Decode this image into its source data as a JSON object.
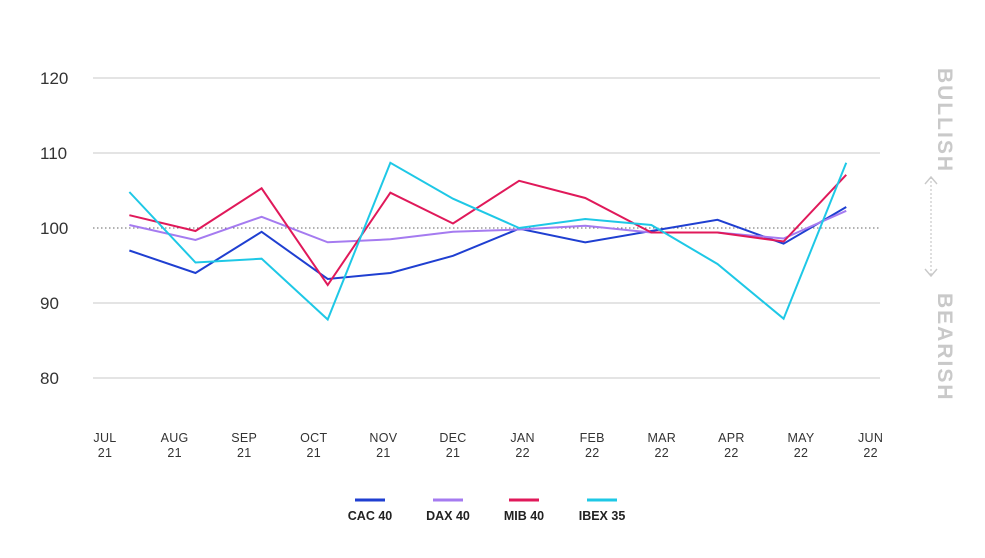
{
  "chart_data": {
    "type": "line",
    "categories": [
      [
        "JUL",
        "21"
      ],
      [
        "AUG",
        "21"
      ],
      [
        "SEP",
        "21"
      ],
      [
        "OCT",
        "21"
      ],
      [
        "NOV",
        "21"
      ],
      [
        "DEC",
        "21"
      ],
      [
        "JAN",
        "22"
      ],
      [
        "FEB",
        "22"
      ],
      [
        "MAR",
        "22"
      ],
      [
        "APR",
        "22"
      ],
      [
        "MAY",
        "22"
      ],
      [
        "JUN",
        "22"
      ]
    ],
    "x": [
      0.35,
      1.3,
      2.25,
      3.2,
      4.1,
      5.0,
      5.95,
      6.9,
      7.85,
      8.8,
      9.75,
      10.65
    ],
    "yticks": [
      80,
      90,
      100,
      110,
      120
    ],
    "ylim": [
      80,
      120
    ],
    "reference_line": 100,
    "grid": true,
    "legend_position": "bottom",
    "side_labels": {
      "top": "BULLISH",
      "bottom": "BEARISH"
    },
    "series": [
      {
        "name": "CAC 40",
        "color": "#1f3fd1",
        "values": [
          97.0,
          94.0,
          99.5,
          93.2,
          94.0,
          96.3,
          99.9,
          98.1,
          99.6,
          101.1,
          97.9,
          102.8
        ]
      },
      {
        "name": "DAX 40",
        "color": "#a57bf0",
        "values": [
          100.4,
          98.4,
          101.5,
          98.1,
          98.5,
          99.5,
          99.8,
          100.3,
          99.4,
          99.4,
          98.6,
          102.3
        ]
      },
      {
        "name": "MIB 40",
        "color": "#e0195a",
        "values": [
          101.7,
          99.6,
          105.3,
          92.4,
          104.7,
          100.6,
          106.3,
          104.0,
          99.4,
          99.4,
          98.2,
          107.1
        ]
      },
      {
        "name": "IBEX 35",
        "color": "#1ec8e6",
        "values": [
          104.8,
          95.4,
          95.9,
          87.8,
          108.7,
          103.9,
          100.0,
          101.2,
          100.4,
          95.2,
          87.9,
          108.7
        ]
      }
    ]
  }
}
